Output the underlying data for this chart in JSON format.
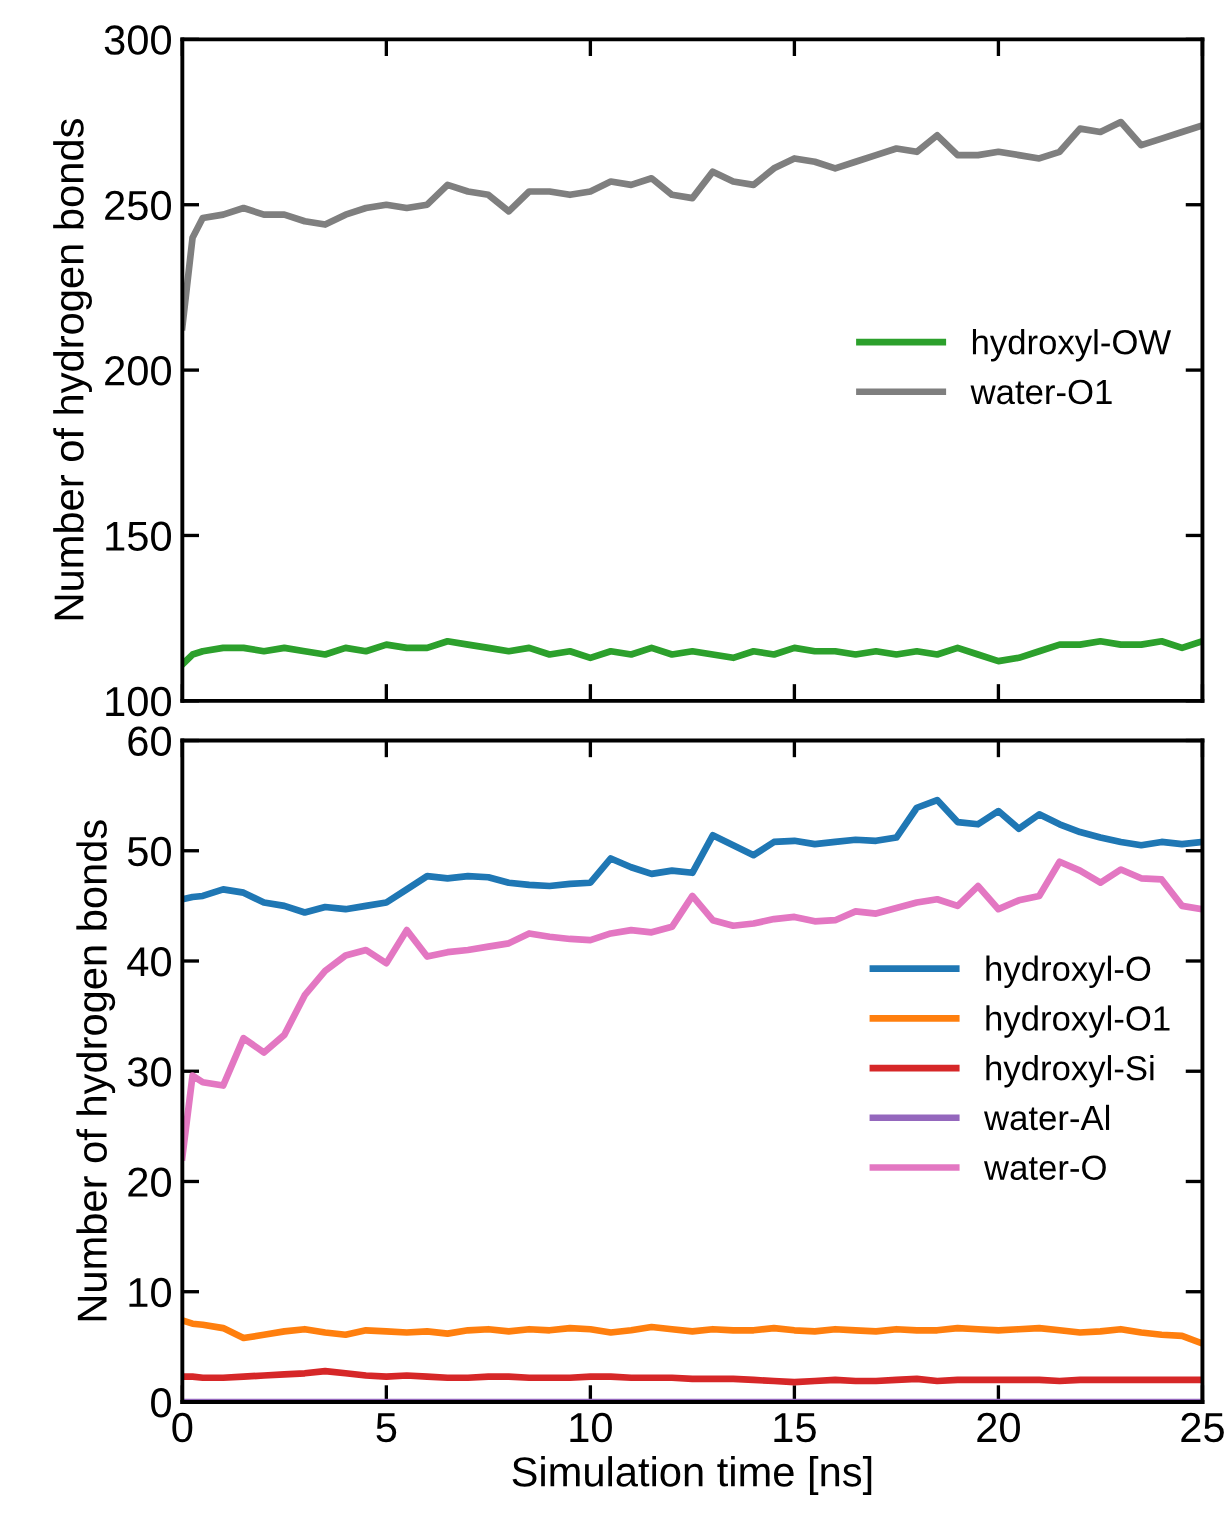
{
  "chart_data": [
    {
      "type": "line",
      "ylabel": "Number of hydrogen bonds",
      "xlim": [
        0,
        25
      ],
      "xticks": [
        0,
        5,
        10,
        15,
        20,
        25
      ],
      "ylim": [
        100,
        300
      ],
      "yticks": [
        100,
        150,
        200,
        250,
        300
      ],
      "tick_labels": "y",
      "legend": "right",
      "grid": false,
      "marker": "none",
      "line_style": "solid",
      "x": [
        0,
        0.25,
        0.5,
        1,
        1.5,
        2,
        2.5,
        3,
        3.5,
        4,
        4.5,
        5,
        5.5,
        6,
        6.5,
        7,
        7.5,
        8,
        8.5,
        9,
        9.5,
        10,
        10.5,
        11,
        11.5,
        12,
        12.5,
        13,
        13.5,
        14,
        14.5,
        15,
        15.5,
        16,
        16.5,
        17,
        17.5,
        18,
        18.5,
        19,
        19.5,
        20,
        20.5,
        21,
        21.5,
        22,
        22.5,
        23,
        23.5,
        24,
        24.5,
        25
      ],
      "series": [
        {
          "name": "hydroxyl-OW",
          "color": "#2ca02c",
          "values": [
            111,
            114,
            115,
            116,
            116,
            115,
            116,
            115,
            114,
            116,
            115,
            117,
            116,
            116,
            118,
            117,
            116,
            115,
            116,
            114,
            115,
            113,
            115,
            114,
            116,
            114,
            115,
            114,
            113,
            115,
            114,
            116,
            115,
            115,
            114,
            115,
            114,
            115,
            114,
            116,
            114,
            112,
            113,
            115,
            117,
            117,
            118,
            117,
            117,
            118,
            116,
            118
          ]
        },
        {
          "name": "water-O1",
          "color": "#7f7f7f",
          "values": [
            213,
            240,
            246,
            247,
            249,
            247,
            247,
            245,
            244,
            247,
            249,
            250,
            249,
            250,
            256,
            254,
            253,
            248,
            254,
            254,
            253,
            254,
            257,
            256,
            258,
            253,
            252,
            260,
            257,
            256,
            261,
            264,
            263,
            261,
            263,
            265,
            267,
            266,
            271,
            265,
            265,
            266,
            265,
            264,
            266,
            273,
            272,
            275,
            268,
            270,
            272,
            274
          ]
        }
      ]
    },
    {
      "type": "line",
      "xlabel": "Simulation time [ns]",
      "ylabel": "Number of hydrogen bonds",
      "xlim": [
        0,
        25
      ],
      "xticks": [
        0,
        5,
        10,
        15,
        20,
        25
      ],
      "ylim": [
        0,
        60
      ],
      "yticks": [
        0,
        10,
        20,
        30,
        40,
        50,
        60
      ],
      "legend": "right",
      "grid": false,
      "marker": "none",
      "line_style": "solid",
      "x": [
        0,
        0.25,
        0.5,
        1,
        1.5,
        2,
        2.5,
        3,
        3.5,
        4,
        4.5,
        5,
        5.5,
        6,
        6.5,
        7,
        7.5,
        8,
        8.5,
        9,
        9.5,
        10,
        10.5,
        11,
        11.5,
        12,
        12.5,
        13,
        13.5,
        14,
        14.5,
        15,
        15.5,
        16,
        16.5,
        17,
        17.5,
        18,
        18.5,
        19,
        19.5,
        20,
        20.5,
        21,
        21.5,
        22,
        22.5,
        23,
        23.5,
        24,
        24.5,
        25
      ],
      "series": [
        {
          "name": "hydroxyl-O",
          "color": "#1f77b4",
          "values": [
            45.6,
            45.8,
            45.9,
            46.5,
            46.2,
            45.3,
            45.0,
            44.4,
            44.9,
            44.7,
            45.0,
            45.3,
            46.5,
            47.7,
            47.5,
            47.7,
            47.6,
            47.1,
            46.9,
            46.8,
            47.0,
            47.1,
            49.3,
            48.5,
            47.9,
            48.2,
            48.0,
            51.4,
            50.5,
            49.6,
            50.8,
            50.9,
            50.6,
            50.8,
            51.0,
            50.9,
            51.2,
            53.9,
            54.6,
            52.6,
            52.4,
            53.6,
            52.0,
            53.3,
            52.4,
            51.7,
            51.2,
            50.8,
            50.5,
            50.8,
            50.6,
            50.8
          ]
        },
        {
          "name": "hydroxyl-O1",
          "color": "#ff7f0e",
          "values": [
            7.4,
            7.1,
            7.0,
            6.7,
            5.8,
            6.1,
            6.4,
            6.6,
            6.3,
            6.1,
            6.5,
            6.4,
            6.3,
            6.4,
            6.2,
            6.5,
            6.6,
            6.4,
            6.6,
            6.5,
            6.7,
            6.6,
            6.3,
            6.5,
            6.8,
            6.6,
            6.4,
            6.6,
            6.5,
            6.5,
            6.7,
            6.5,
            6.4,
            6.6,
            6.5,
            6.4,
            6.6,
            6.5,
            6.5,
            6.7,
            6.6,
            6.5,
            6.6,
            6.7,
            6.5,
            6.3,
            6.4,
            6.6,
            6.3,
            6.1,
            6.0,
            5.3
          ]
        },
        {
          "name": "hydroxyl-Si",
          "color": "#d62728",
          "values": [
            2.3,
            2.3,
            2.2,
            2.2,
            2.3,
            2.4,
            2.5,
            2.6,
            2.8,
            2.6,
            2.4,
            2.3,
            2.4,
            2.3,
            2.2,
            2.2,
            2.3,
            2.3,
            2.2,
            2.2,
            2.2,
            2.3,
            2.3,
            2.2,
            2.2,
            2.2,
            2.1,
            2.1,
            2.1,
            2.0,
            1.9,
            1.8,
            1.9,
            2.0,
            1.9,
            1.9,
            2.0,
            2.1,
            1.9,
            2.0,
            2.0,
            2.0,
            2.0,
            2.0,
            1.9,
            2.0,
            2.0,
            2.0,
            2.0,
            2.0,
            2.0,
            2.0
          ]
        },
        {
          "name": "water-Al",
          "color": "#9467bd",
          "values": [
            0,
            0,
            0,
            0,
            0,
            0,
            0,
            0,
            0,
            0,
            0,
            0,
            0,
            0,
            0,
            0,
            0,
            0,
            0,
            0,
            0,
            0,
            0,
            0,
            0,
            0,
            0,
            0,
            0,
            0,
            0,
            0,
            0,
            0,
            0,
            0,
            0,
            0,
            0,
            0,
            0,
            0,
            0,
            0,
            0,
            0,
            0,
            0,
            0,
            0,
            0,
            0
          ]
        },
        {
          "name": "water-O",
          "color": "#e377c2",
          "values": [
            22.2,
            29.6,
            29.0,
            28.7,
            33.0,
            31.7,
            33.3,
            36.9,
            39.1,
            40.5,
            41.0,
            39.8,
            42.8,
            40.4,
            40.8,
            41.0,
            41.3,
            41.6,
            42.5,
            42.2,
            42.0,
            41.9,
            42.5,
            42.8,
            42.6,
            43.1,
            45.9,
            43.7,
            43.2,
            43.4,
            43.8,
            44.0,
            43.6,
            43.7,
            44.5,
            44.3,
            44.8,
            45.3,
            45.6,
            45.0,
            46.8,
            44.7,
            45.5,
            45.9,
            49.0,
            48.2,
            47.1,
            48.3,
            47.5,
            47.4,
            45.0,
            44.7
          ]
        }
      ]
    }
  ]
}
